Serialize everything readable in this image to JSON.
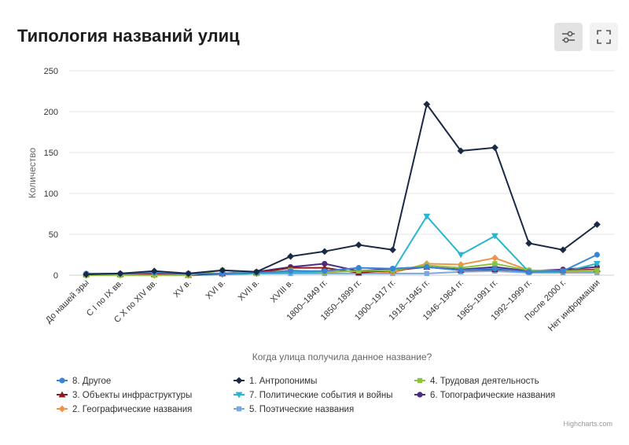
{
  "header": {
    "title": "Типология названий улиц",
    "filter_icon": "sliders-icon",
    "fullscreen_icon": "fullscreen-icon"
  },
  "credits": "Highcharts.com",
  "chart_data": {
    "type": "line",
    "title": "Типология названий улиц",
    "xlabel": "Когда улица получила данное название?",
    "ylabel": "Количество",
    "ylim": [
      0,
      250
    ],
    "yticks": [
      0,
      50,
      100,
      150,
      200,
      250
    ],
    "grid": true,
    "legend_position": "bottom",
    "categories": [
      "До нашей эры",
      "C I по IX вв.",
      "C X по XIV вв.",
      "XV в.",
      "XVI в.",
      "XVII в.",
      "XVIII в.",
      "1800–1849 гг.",
      "1850–1899 гг.",
      "1900–1917 гг.",
      "1918–1945 гг.",
      "1946–1964 гг.",
      "1965–1991 гг.",
      "1992–1999 гг.",
      "После 2000 г.",
      "Нет информации"
    ],
    "series": [
      {
        "name": "8. Другое",
        "color": "#3a84d8",
        "marker": "circle",
        "values": [
          2,
          2,
          3,
          2,
          2,
          3,
          5,
          5,
          9,
          8,
          10,
          6,
          8,
          4,
          5,
          25
        ]
      },
      {
        "name": "1. Антропонимы",
        "color": "#1a2a44",
        "marker": "diamond",
        "values": [
          1,
          2,
          5,
          2,
          6,
          4,
          23,
          29,
          37,
          31,
          209,
          152,
          156,
          39,
          31,
          62
        ]
      },
      {
        "name": "4. Трудовая деятельность",
        "color": "#8bc43f",
        "marker": "square",
        "values": [
          0,
          0,
          0,
          0,
          6,
          2,
          6,
          4,
          5,
          6,
          12,
          9,
          14,
          6,
          5,
          6
        ]
      },
      {
        "name": "3. Объекты инфраструктуры",
        "color": "#8b1a1a",
        "marker": "triangle",
        "values": [
          1,
          1,
          1,
          0,
          2,
          3,
          9,
          9,
          3,
          6,
          10,
          6,
          7,
          5,
          6,
          7
        ]
      },
      {
        "name": "7. Политические события и войны",
        "color": "#29b5d0",
        "marker": "triangle-down",
        "values": [
          0,
          0,
          0,
          0,
          1,
          2,
          3,
          4,
          5,
          5,
          72,
          25,
          48,
          4,
          4,
          14
        ]
      },
      {
        "name": "6. Топографические названия",
        "color": "#4b2d7f",
        "marker": "circle",
        "values": [
          0,
          1,
          1,
          1,
          2,
          4,
          10,
          14,
          5,
          8,
          10,
          7,
          10,
          5,
          7,
          10
        ]
      },
      {
        "name": "2. Географические названия",
        "color": "#f0944a",
        "marker": "diamond",
        "values": [
          0,
          0,
          0,
          0,
          1,
          2,
          6,
          3,
          6,
          3,
          14,
          13,
          21,
          6,
          4,
          5
        ]
      },
      {
        "name": "5. Поэтические названия",
        "color": "#7aa8e0",
        "marker": "square",
        "values": [
          1,
          1,
          2,
          2,
          2,
          2,
          2,
          2,
          2,
          2,
          2,
          4,
          5,
          3,
          3,
          3
        ]
      }
    ]
  }
}
